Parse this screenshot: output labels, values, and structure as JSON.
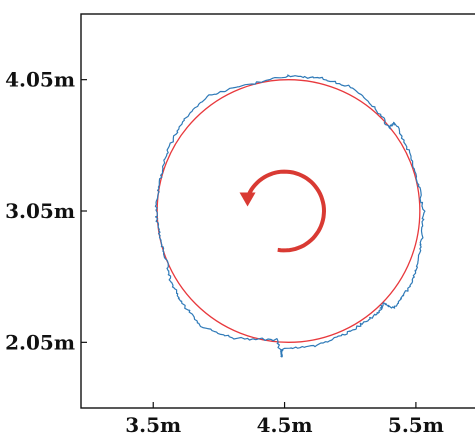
{
  "chart_data": {
    "type": "line",
    "title": "",
    "xlabel": "",
    "ylabel": "",
    "xlim": [
      2.95,
      5.95
    ],
    "ylim": [
      1.55,
      4.55
    ],
    "grid": false,
    "x_ticks": [
      {
        "value": 3.5,
        "label": "3.5m"
      },
      {
        "value": 4.5,
        "label": "4.5m"
      },
      {
        "value": 5.5,
        "label": "5.5m"
      }
    ],
    "y_ticks": [
      {
        "value": 4.05,
        "label": "4.05m"
      },
      {
        "value": 3.05,
        "label": "3.05m"
      },
      {
        "value": 2.05,
        "label": "2.05m"
      }
    ],
    "series": [
      {
        "kind": "reference_circle",
        "color": "#e8393d",
        "center": [
          4.53,
          3.05
        ],
        "radius": 1.0
      },
      {
        "kind": "measured_trajectory",
        "color": "#2f7ab8",
        "noise_amplitude": 0.018,
        "x": [
          4.53,
          4.78,
          5.02,
          5.21,
          5.3,
          5.34,
          5.45,
          5.52,
          5.56,
          5.54,
          5.5,
          5.45,
          5.33,
          5.25,
          5.22,
          5.12,
          4.96,
          4.72,
          4.48,
          4.48,
          4.44,
          4.12,
          3.88,
          3.71,
          3.63,
          3.6,
          3.55,
          3.52,
          3.55,
          3.61,
          3.73,
          3.92,
          4.2,
          4.53
        ],
        "y": [
          4.08,
          4.06,
          3.99,
          3.81,
          3.68,
          3.72,
          3.49,
          3.25,
          3.05,
          2.8,
          2.6,
          2.47,
          2.31,
          2.35,
          2.28,
          2.21,
          2.11,
          2.02,
          2.0,
          1.94,
          2.07,
          2.08,
          2.16,
          2.36,
          2.52,
          2.68,
          2.84,
          3.05,
          3.27,
          3.52,
          3.74,
          3.93,
          4.01,
          4.08
        ]
      },
      {
        "kind": "direction_arrow",
        "color": "#d93a33",
        "center": [
          4.5,
          3.05
        ],
        "radius": 0.3,
        "start_angle_deg": 260,
        "end_angle_deg": 200,
        "sweep": "counterclockwise"
      }
    ]
  }
}
